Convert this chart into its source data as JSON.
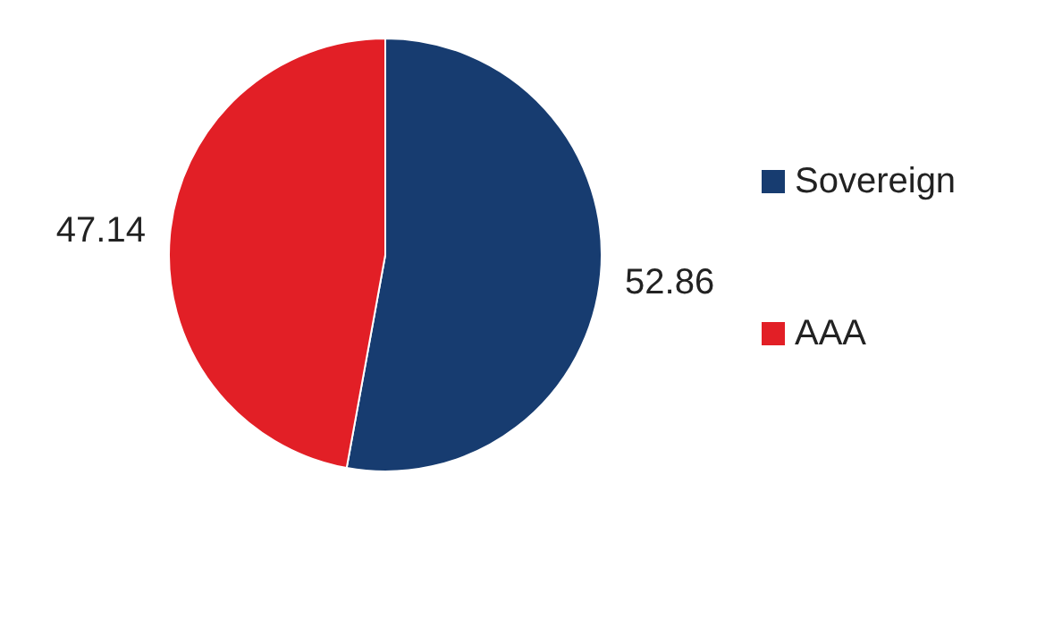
{
  "chart_data": {
    "type": "pie",
    "categories": [
      "Sovereign",
      "AAA"
    ],
    "values": [
      52.86,
      47.14
    ],
    "colors": [
      "#173c70",
      "#e21f26"
    ],
    "data_labels": true,
    "legend": "right"
  }
}
